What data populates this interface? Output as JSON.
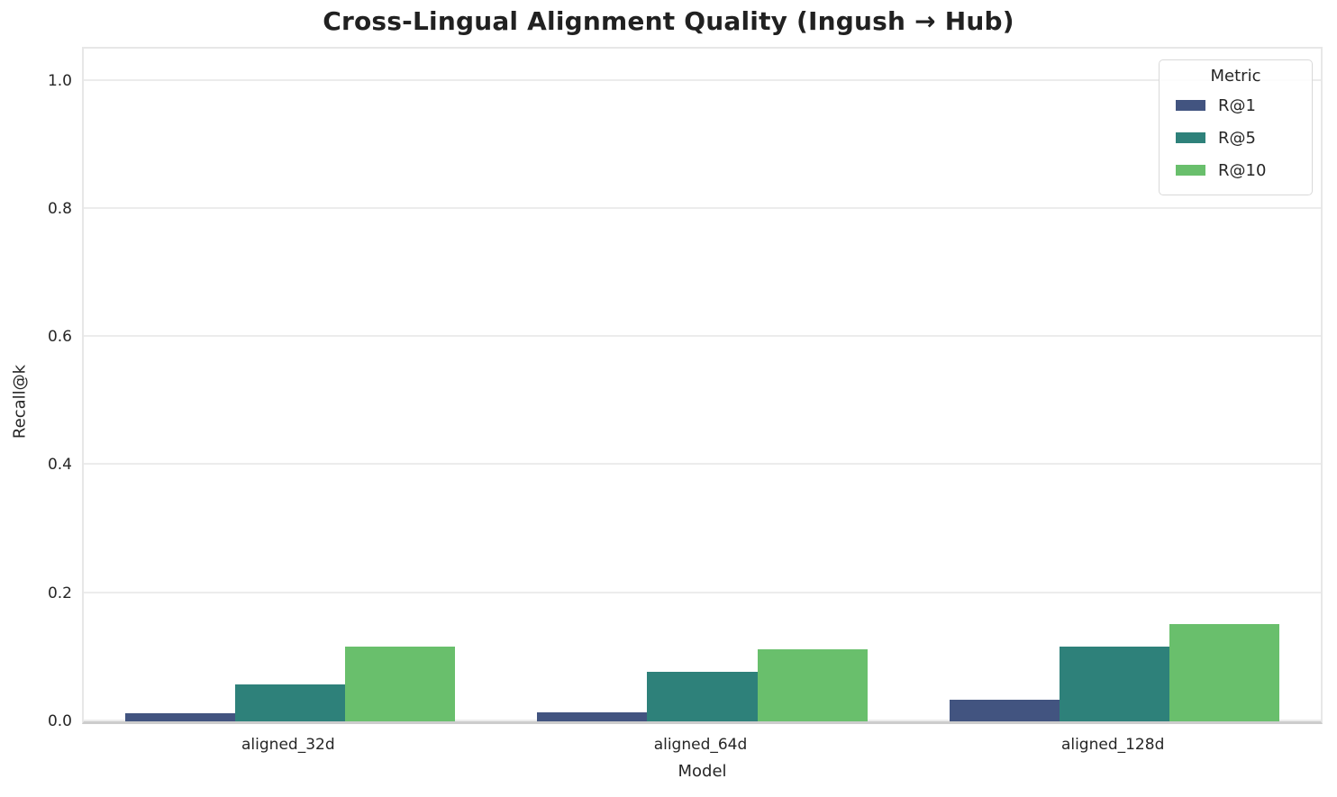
{
  "chart_data": {
    "type": "bar",
    "title": "Cross-Lingual Alignment Quality (Ingush → Hub)",
    "xlabel": "Model",
    "ylabel": "Recall@k",
    "categories": [
      "aligned_32d",
      "aligned_64d",
      "aligned_128d"
    ],
    "series": [
      {
        "name": "R@1",
        "color": "#425480",
        "values": [
          0.012,
          0.014,
          0.034
        ]
      },
      {
        "name": "R@5",
        "color": "#2e817a",
        "values": [
          0.057,
          0.078,
          0.117
        ]
      },
      {
        "name": "R@10",
        "color": "#69bf6c",
        "values": [
          0.117,
          0.113,
          0.152
        ]
      }
    ],
    "ylim": [
      0,
      1.05
    ],
    "yticks": [
      "0.0",
      "0.2",
      "0.4",
      "0.6",
      "0.8",
      "1.0"
    ],
    "legend": {
      "title": "Metric",
      "position": "upper right"
    },
    "grid": "horizontal",
    "bar_group_width_fraction": 0.8
  }
}
